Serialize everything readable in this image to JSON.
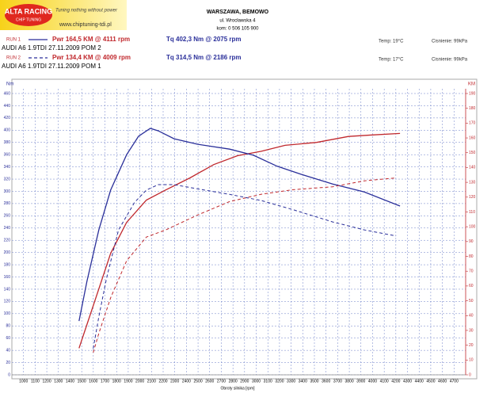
{
  "header": {
    "logo": "ALTA RACING",
    "logo_sub": "CHIP TUNING",
    "slogan": "Tuning nothing without power",
    "website": "www.chiptuning-tdi.pl",
    "city": "WARSZAWA, BEMOWO",
    "street": "ul. Wrocławska 4",
    "phone": "kom: 0 506 105 900"
  },
  "runs": [
    {
      "label": "RUN 1",
      "car": "AUDI  A6  1.9TDI  27.11.2009  POM 2",
      "temp": "Temp: 19°C",
      "pressure": "Cisnienie: 99kPa"
    },
    {
      "label": "RUN 2",
      "car": "AUDI  A6  1.9TDI  27.11.2009  POM 1",
      "temp": "Temp: 17°C",
      "pressure": "Cisnienie: 99kPa"
    }
  ],
  "chart_data": {
    "type": "line",
    "ylabel": "Nm",
    "y2label": "KM",
    "xlabel": "Obroty silnika [rpm]",
    "grid": true,
    "xlim": [
      900,
      4800
    ],
    "xticks": [
      1000,
      1100,
      1200,
      1300,
      1400,
      1500,
      1600,
      1700,
      1800,
      1900,
      2000,
      2100,
      2200,
      2300,
      2400,
      2500,
      2600,
      2700,
      2800,
      2900,
      3000,
      3100,
      3200,
      3300,
      3400,
      3500,
      3600,
      3700,
      3800,
      3900,
      4000,
      4100,
      4200,
      4300,
      4400,
      4500,
      4600,
      4700
    ],
    "ylim": [
      0,
      460
    ],
    "yticks": [
      0,
      20,
      40,
      60,
      80,
      100,
      120,
      140,
      160,
      180,
      200,
      220,
      240,
      260,
      280,
      300,
      320,
      340,
      360,
      380,
      400,
      420,
      440,
      460
    ],
    "y2lim": [
      0,
      190
    ],
    "y2ticks": [
      0,
      10,
      20,
      30,
      40,
      50,
      60,
      70,
      80,
      90,
      100,
      110,
      120,
      130,
      140,
      150,
      160,
      170,
      180,
      190
    ],
    "series": [
      {
        "name": "Pwr 164,5 KM @ 4111 rpm",
        "color": "#c0282d",
        "axis": "y2",
        "dashed": false,
        "run": 0,
        "x": [
          1477,
          1545,
          1647,
          1749,
          1886,
          2056,
          2226,
          2431,
          2635,
          2839,
          3044,
          3248,
          3520,
          3793,
          3997,
          4236
        ],
        "values": [
          18,
          34,
          58,
          82,
          103,
          118,
          125,
          133,
          142,
          148,
          151,
          155,
          157,
          161,
          162,
          163
        ]
      },
      {
        "name": "Tq 402,3 Nm @ 2075 rpm",
        "color": "#2a2f9a",
        "axis": "y",
        "dashed": false,
        "run": 0,
        "x": [
          1477,
          1545,
          1647,
          1749,
          1886,
          1988,
          2090,
          2158,
          2294,
          2499,
          2771,
          2976,
          3180,
          3384,
          3657,
          3929,
          4236
        ],
        "values": [
          88,
          153,
          237,
          302,
          360,
          390,
          403,
          399,
          386,
          377,
          369,
          359,
          341,
          328,
          312,
          299,
          276
        ]
      },
      {
        "name": "Pwr 134,4 KM @ 4009 rpm",
        "color": "#c0282d",
        "axis": "y2",
        "dashed": true,
        "run": 1,
        "x": [
          1599,
          1647,
          1749,
          1886,
          2056,
          2226,
          2499,
          2771,
          3044,
          3316,
          3657,
          3929,
          4202
        ],
        "values": [
          15,
          28,
          52,
          77,
          93,
          98,
          108,
          117,
          122,
          125,
          127,
          131,
          133
        ]
      },
      {
        "name": "Tq 314,5 Nm @ 2186 rpm",
        "color": "#2a2f9a",
        "axis": "y",
        "dashed": true,
        "run": 1,
        "x": [
          1599,
          1647,
          1715,
          1817,
          1954,
          2056,
          2158,
          2294,
          2499,
          2771,
          3044,
          3316,
          3657,
          3929,
          4202
        ],
        "values": [
          43,
          95,
          159,
          237,
          282,
          302,
          311,
          311,
          304,
          295,
          285,
          270,
          250,
          237,
          227
        ]
      }
    ]
  }
}
